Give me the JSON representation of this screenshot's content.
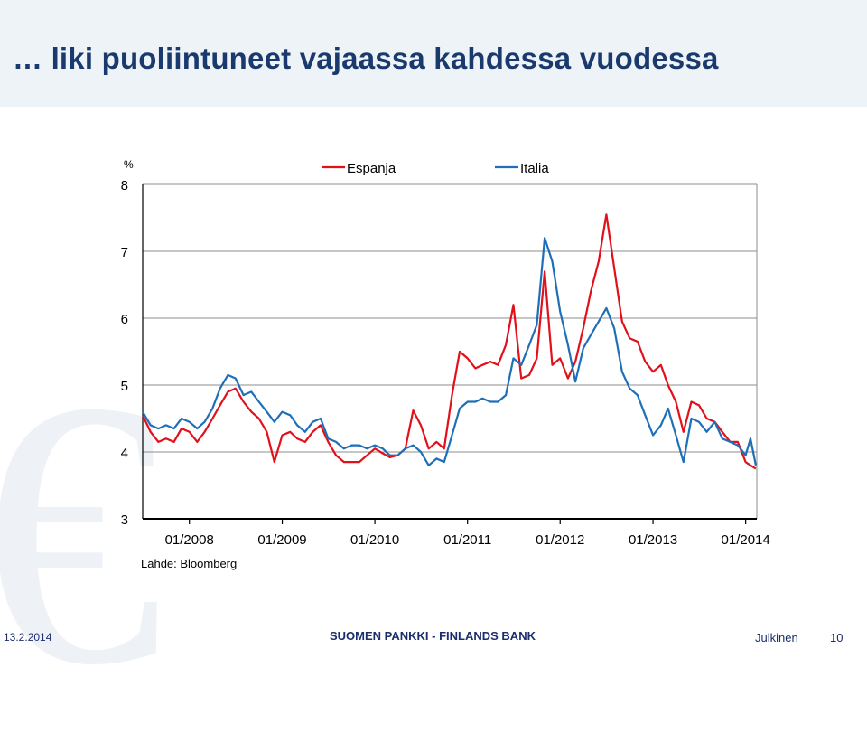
{
  "slide": {
    "title": "… liki puoliintuneet vajaassa kahdessa vuodessa",
    "source": "Lähde: Bloomberg",
    "footer": {
      "date": "13.2.2014",
      "organization": "SUOMEN PANKKI - FINLANDS BANK",
      "classification": "Julkinen",
      "page": "10"
    }
  },
  "chart_data": {
    "type": "line",
    "unit_label": "%",
    "ylim": [
      3,
      8
    ],
    "yticks": [
      "3",
      "4",
      "5",
      "6",
      "7",
      "8"
    ],
    "xlim": [
      "2007-07-01",
      "2014-02-14"
    ],
    "xticks": [
      {
        "label": "01/2008",
        "date": "2008-01-01"
      },
      {
        "label": "01/2009",
        "date": "2009-01-01"
      },
      {
        "label": "01/2010",
        "date": "2010-01-01"
      },
      {
        "label": "01/2011",
        "date": "2011-01-01"
      },
      {
        "label": "01/2012",
        "date": "2012-01-01"
      },
      {
        "label": "01/2013",
        "date": "2013-01-01"
      },
      {
        "label": "01/2014",
        "date": "2014-01-01"
      }
    ],
    "grid": true,
    "legend_position": "top",
    "series": [
      {
        "name": "Espanja",
        "color": "#e2101a",
        "points": [
          [
            "2007-07-01",
            4.55
          ],
          [
            "2007-08-01",
            4.3
          ],
          [
            "2007-09-01",
            4.15
          ],
          [
            "2007-10-01",
            4.2
          ],
          [
            "2007-11-01",
            4.15
          ],
          [
            "2007-12-01",
            4.35
          ],
          [
            "2008-01-01",
            4.3
          ],
          [
            "2008-02-01",
            4.15
          ],
          [
            "2008-03-01",
            4.3
          ],
          [
            "2008-04-01",
            4.5
          ],
          [
            "2008-05-01",
            4.7
          ],
          [
            "2008-06-01",
            4.9
          ],
          [
            "2008-07-01",
            4.95
          ],
          [
            "2008-08-01",
            4.75
          ],
          [
            "2008-09-01",
            4.6
          ],
          [
            "2008-10-01",
            4.5
          ],
          [
            "2008-11-01",
            4.3
          ],
          [
            "2008-12-01",
            3.85
          ],
          [
            "2009-01-01",
            4.25
          ],
          [
            "2009-02-01",
            4.3
          ],
          [
            "2009-03-01",
            4.2
          ],
          [
            "2009-04-01",
            4.15
          ],
          [
            "2009-05-01",
            4.3
          ],
          [
            "2009-06-01",
            4.4
          ],
          [
            "2009-07-01",
            4.15
          ],
          [
            "2009-08-01",
            3.95
          ],
          [
            "2009-09-01",
            3.85
          ],
          [
            "2009-10-01",
            3.85
          ],
          [
            "2009-11-01",
            3.85
          ],
          [
            "2009-12-01",
            3.95
          ],
          [
            "2010-01-01",
            4.05
          ],
          [
            "2010-02-01",
            3.98
          ],
          [
            "2010-03-01",
            3.92
          ],
          [
            "2010-04-01",
            3.95
          ],
          [
            "2010-05-01",
            4.05
          ],
          [
            "2010-06-01",
            4.62
          ],
          [
            "2010-07-01",
            4.4
          ],
          [
            "2010-08-01",
            4.05
          ],
          [
            "2010-09-01",
            4.15
          ],
          [
            "2010-10-01",
            4.05
          ],
          [
            "2010-11-01",
            4.85
          ],
          [
            "2010-12-01",
            5.5
          ],
          [
            "2011-01-01",
            5.4
          ],
          [
            "2011-02-01",
            5.25
          ],
          [
            "2011-03-01",
            5.3
          ],
          [
            "2011-04-01",
            5.35
          ],
          [
            "2011-05-01",
            5.3
          ],
          [
            "2011-06-01",
            5.6
          ],
          [
            "2011-07-01",
            6.2
          ],
          [
            "2011-08-01",
            5.1
          ],
          [
            "2011-09-01",
            5.15
          ],
          [
            "2011-10-01",
            5.4
          ],
          [
            "2011-11-01",
            6.7
          ],
          [
            "2011-12-01",
            5.3
          ],
          [
            "2012-01-01",
            5.4
          ],
          [
            "2012-02-01",
            5.1
          ],
          [
            "2012-03-01",
            5.35
          ],
          [
            "2012-04-01",
            5.85
          ],
          [
            "2012-05-01",
            6.4
          ],
          [
            "2012-06-01",
            6.85
          ],
          [
            "2012-07-01",
            7.55
          ],
          [
            "2012-08-01",
            6.75
          ],
          [
            "2012-09-01",
            5.95
          ],
          [
            "2012-10-01",
            5.7
          ],
          [
            "2012-11-01",
            5.65
          ],
          [
            "2012-12-01",
            5.35
          ],
          [
            "2013-01-01",
            5.2
          ],
          [
            "2013-02-01",
            5.3
          ],
          [
            "2013-03-01",
            5.0
          ],
          [
            "2013-04-01",
            4.75
          ],
          [
            "2013-05-01",
            4.3
          ],
          [
            "2013-06-01",
            4.75
          ],
          [
            "2013-07-01",
            4.7
          ],
          [
            "2013-08-01",
            4.5
          ],
          [
            "2013-09-01",
            4.45
          ],
          [
            "2013-10-01",
            4.3
          ],
          [
            "2013-11-01",
            4.15
          ],
          [
            "2013-12-01",
            4.15
          ],
          [
            "2014-01-01",
            3.85
          ],
          [
            "2014-01-20",
            3.8
          ],
          [
            "2014-02-10",
            3.75
          ]
        ]
      },
      {
        "name": "Italia",
        "color": "#1f6fb8",
        "points": [
          [
            "2007-07-01",
            4.6
          ],
          [
            "2007-08-01",
            4.4
          ],
          [
            "2007-09-01",
            4.35
          ],
          [
            "2007-10-01",
            4.4
          ],
          [
            "2007-11-01",
            4.35
          ],
          [
            "2007-12-01",
            4.5
          ],
          [
            "2008-01-01",
            4.45
          ],
          [
            "2008-02-01",
            4.35
          ],
          [
            "2008-03-01",
            4.45
          ],
          [
            "2008-04-01",
            4.65
          ],
          [
            "2008-05-01",
            4.95
          ],
          [
            "2008-06-01",
            5.15
          ],
          [
            "2008-07-01",
            5.1
          ],
          [
            "2008-08-01",
            4.85
          ],
          [
            "2008-09-01",
            4.9
          ],
          [
            "2008-10-01",
            4.75
          ],
          [
            "2008-11-01",
            4.6
          ],
          [
            "2008-12-01",
            4.45
          ],
          [
            "2009-01-01",
            4.6
          ],
          [
            "2009-02-01",
            4.55
          ],
          [
            "2009-03-01",
            4.4
          ],
          [
            "2009-04-01",
            4.3
          ],
          [
            "2009-05-01",
            4.45
          ],
          [
            "2009-06-01",
            4.5
          ],
          [
            "2009-07-01",
            4.2
          ],
          [
            "2009-08-01",
            4.15
          ],
          [
            "2009-09-01",
            4.05
          ],
          [
            "2009-10-01",
            4.1
          ],
          [
            "2009-11-01",
            4.1
          ],
          [
            "2009-12-01",
            4.05
          ],
          [
            "2010-01-01",
            4.1
          ],
          [
            "2010-02-01",
            4.05
          ],
          [
            "2010-03-01",
            3.95
          ],
          [
            "2010-04-01",
            3.95
          ],
          [
            "2010-05-01",
            4.05
          ],
          [
            "2010-06-01",
            4.1
          ],
          [
            "2010-07-01",
            4.0
          ],
          [
            "2010-08-01",
            3.8
          ],
          [
            "2010-09-01",
            3.9
          ],
          [
            "2010-10-01",
            3.85
          ],
          [
            "2010-11-01",
            4.25
          ],
          [
            "2010-12-01",
            4.65
          ],
          [
            "2011-01-01",
            4.75
          ],
          [
            "2011-02-01",
            4.75
          ],
          [
            "2011-03-01",
            4.8
          ],
          [
            "2011-04-01",
            4.75
          ],
          [
            "2011-05-01",
            4.75
          ],
          [
            "2011-06-01",
            4.85
          ],
          [
            "2011-07-01",
            5.4
          ],
          [
            "2011-08-01",
            5.3
          ],
          [
            "2011-09-01",
            5.6
          ],
          [
            "2011-10-01",
            5.9
          ],
          [
            "2011-11-01",
            7.2
          ],
          [
            "2011-12-01",
            6.85
          ],
          [
            "2012-01-01",
            6.1
          ],
          [
            "2012-02-01",
            5.6
          ],
          [
            "2012-03-01",
            5.05
          ],
          [
            "2012-04-01",
            5.55
          ],
          [
            "2012-05-01",
            5.75
          ],
          [
            "2012-06-01",
            5.95
          ],
          [
            "2012-07-01",
            6.15
          ],
          [
            "2012-08-01",
            5.85
          ],
          [
            "2012-09-01",
            5.2
          ],
          [
            "2012-10-01",
            4.95
          ],
          [
            "2012-11-01",
            4.85
          ],
          [
            "2012-12-01",
            4.55
          ],
          [
            "2013-01-01",
            4.25
          ],
          [
            "2013-02-01",
            4.4
          ],
          [
            "2013-03-01",
            4.65
          ],
          [
            "2013-04-01",
            4.25
          ],
          [
            "2013-05-01",
            3.85
          ],
          [
            "2013-06-01",
            4.5
          ],
          [
            "2013-07-01",
            4.45
          ],
          [
            "2013-08-01",
            4.3
          ],
          [
            "2013-09-01",
            4.45
          ],
          [
            "2013-10-01",
            4.2
          ],
          [
            "2013-11-01",
            4.15
          ],
          [
            "2013-12-01",
            4.1
          ],
          [
            "2014-01-01",
            3.95
          ],
          [
            "2014-01-20",
            4.2
          ],
          [
            "2014-02-10",
            3.8
          ]
        ]
      }
    ]
  }
}
